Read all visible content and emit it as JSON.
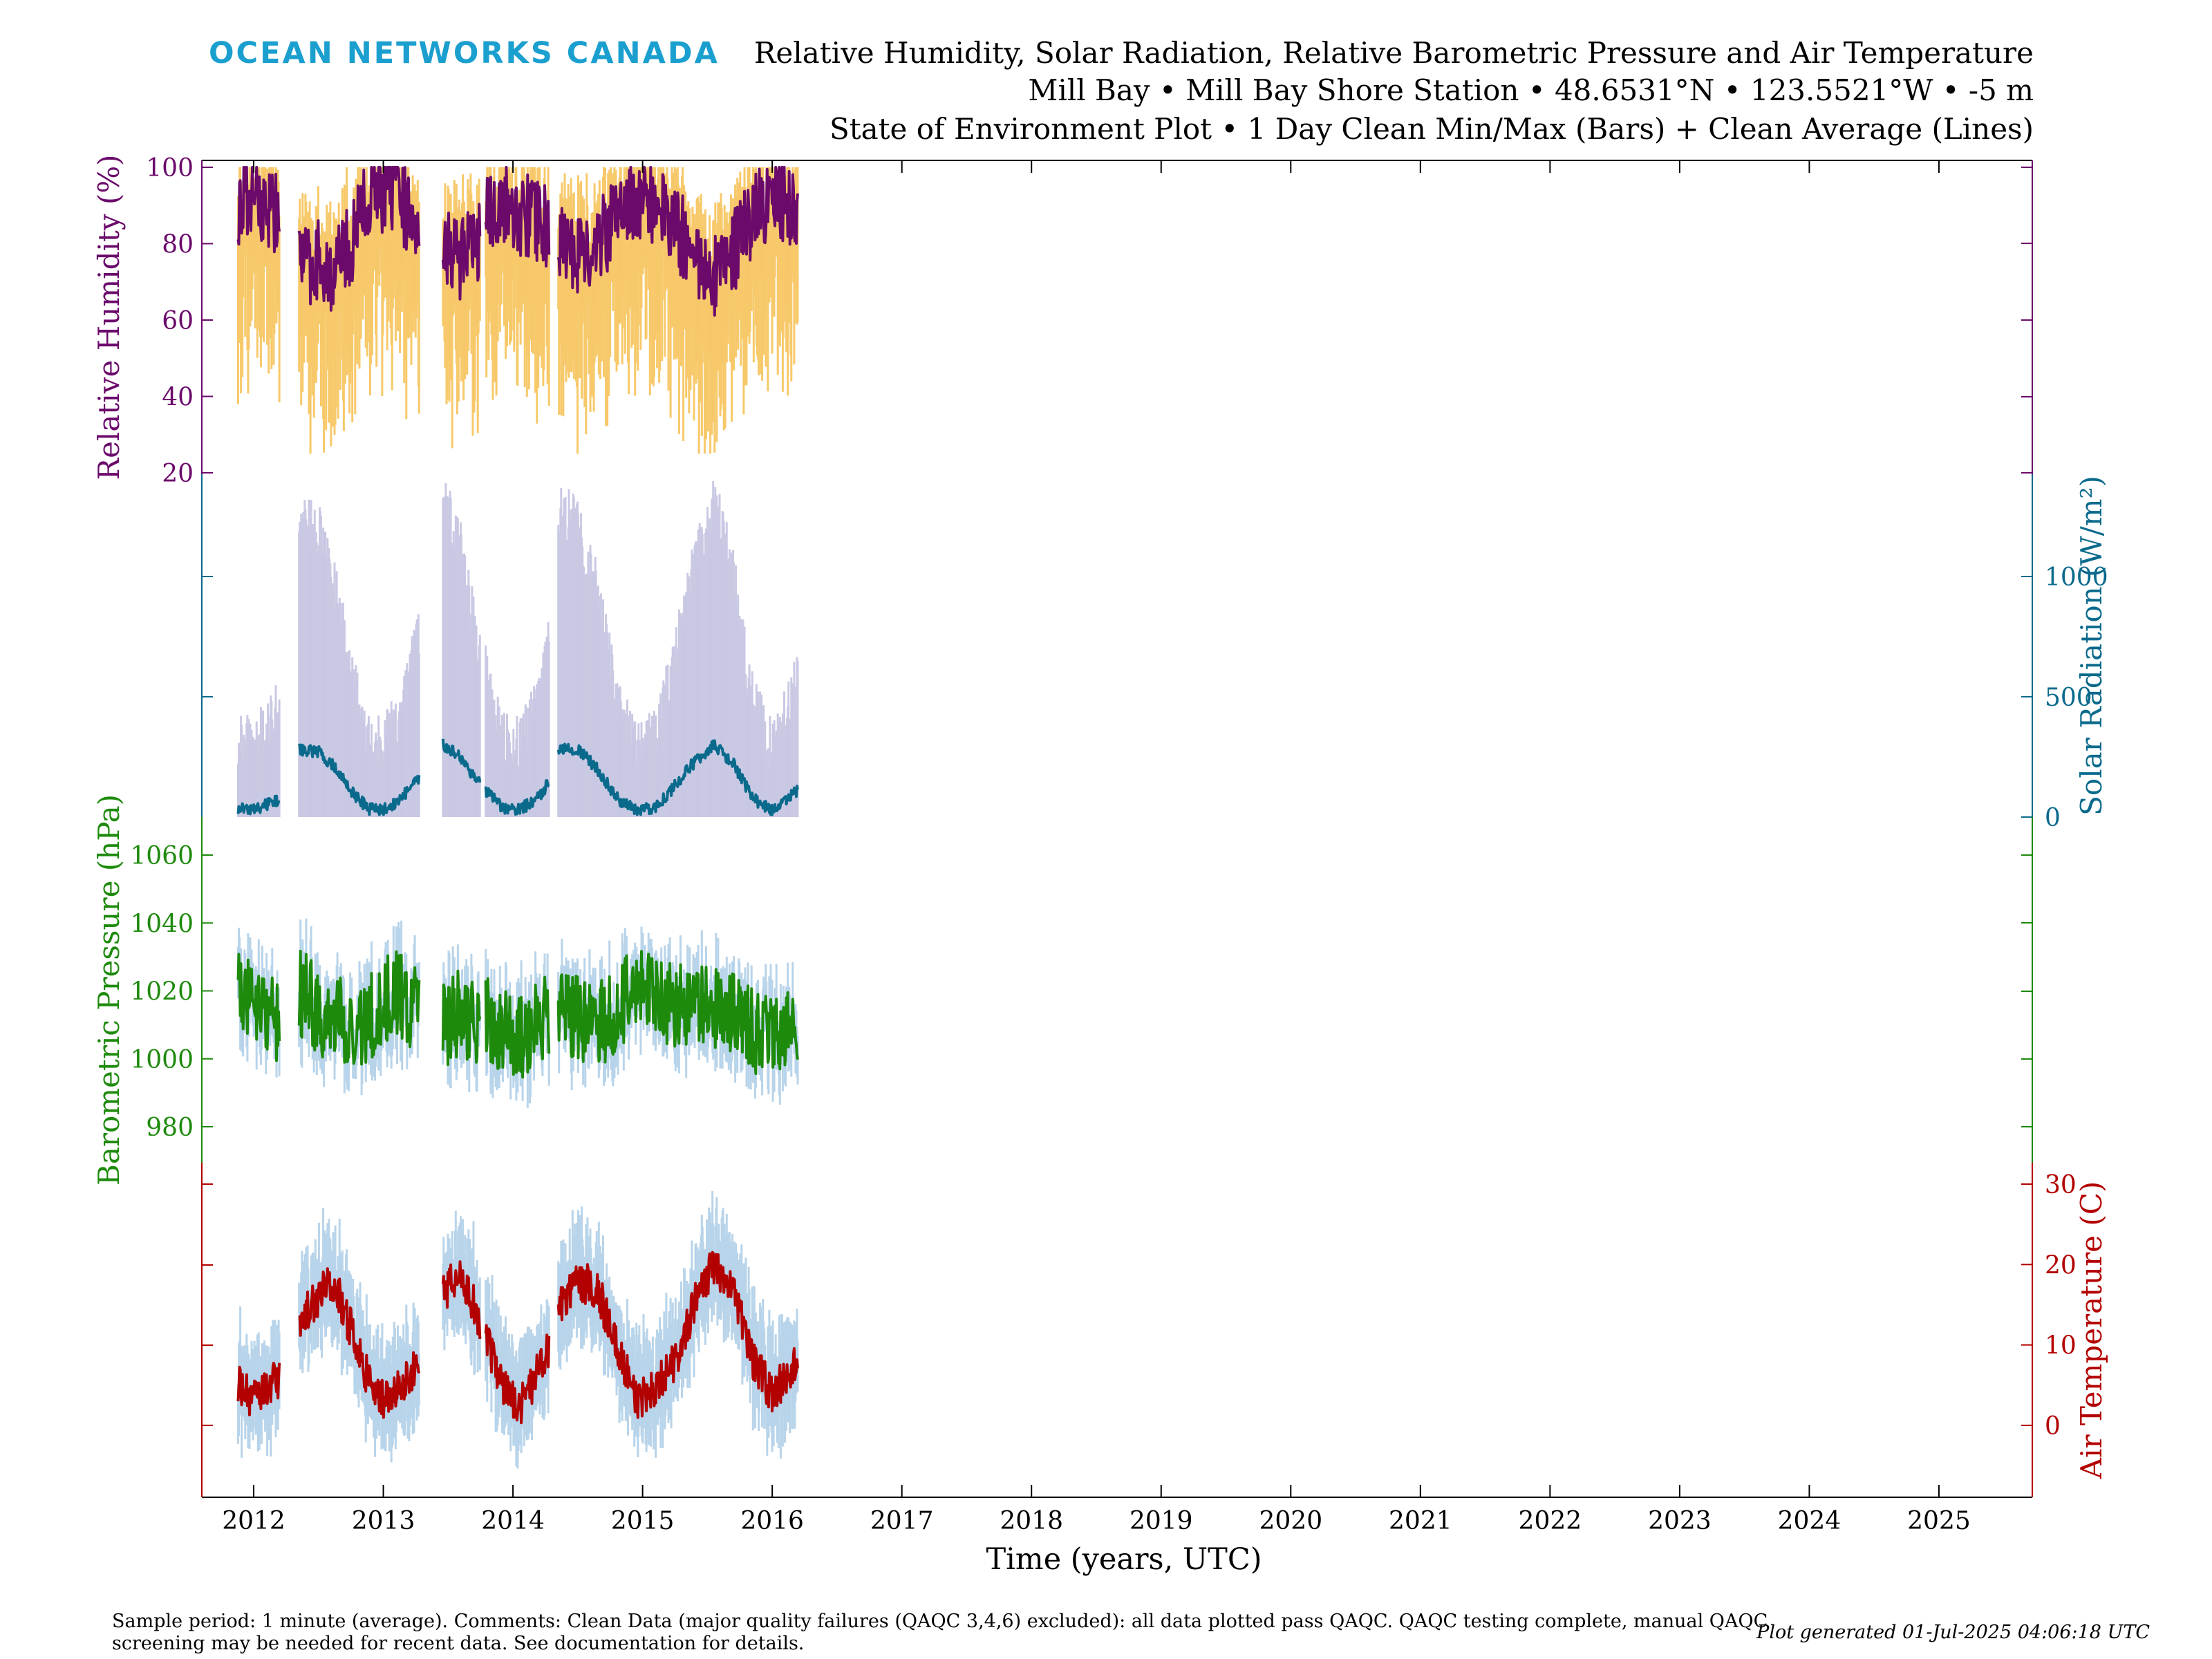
{
  "header": {
    "logo": "OCEAN NETWORKS CANADA",
    "title_line1": "Relative Humidity, Solar Radiation, Relative Barometric Pressure and Air Temperature",
    "title_line2": "Mill Bay • Mill Bay Shore Station • 48.6531°N • 123.5521°W • -5 m",
    "title_line3": "State of Environment Plot • 1 Day Clean Min/Max (Bars) + Clean Average (Lines)"
  },
  "footer": {
    "note": "Sample period: 1 minute (average). Comments: Clean Data (major quality failures (QAQC 3,4,6) excluded): all data plotted pass QAQC. QAQC testing complete, manual QAQC screening may be needed for recent data. See documentation for details.",
    "generated": "Plot generated 01-Jul-2025 04:06:18 UTC"
  },
  "colors": {
    "humidity": "#6b0a6b",
    "humidity_range": "#f7c96a",
    "solar": "#0a6a8c",
    "solar_range": "#c9c9e4",
    "pressure": "#1d8a0c",
    "pressure_range": "#b8d4ea",
    "temperature": "#b30000",
    "temperature_range": "#b8d4ea"
  },
  "chart_data": {
    "type": "line",
    "xlabel": "Time (years, UTC)",
    "xlim": [
      2011.6,
      2025.72
    ],
    "x_ticks": [
      "2012",
      "2013",
      "2014",
      "2015",
      "2016",
      "2017",
      "2018",
      "2019",
      "2020",
      "2021",
      "2022",
      "2023",
      "2024",
      "2025"
    ],
    "data_segments": [
      [
        2011.88,
        2012.2
      ],
      [
        2012.35,
        2013.28
      ],
      [
        2013.46,
        2013.75
      ],
      [
        2013.79,
        2014.28
      ],
      [
        2014.35,
        2016.2
      ]
    ],
    "series": [
      {
        "name": "Relative Humidity",
        "ylabel": "Relative Humidity (%)",
        "axis": "left",
        "ylim": [
          10,
          100
        ],
        "ticks": [
          "100",
          "80",
          "60",
          "40",
          "20"
        ],
        "monthly_avg": [
          [
            2011.88,
            90
          ],
          [
            2012.0,
            92
          ],
          [
            2012.2,
            88
          ],
          [
            2012.35,
            74
          ],
          [
            2012.5,
            76
          ],
          [
            2012.62,
            72
          ],
          [
            2012.75,
            80
          ],
          [
            2012.88,
            92
          ],
          [
            2013.0,
            94
          ],
          [
            2013.1,
            92
          ],
          [
            2013.28,
            86
          ],
          [
            2013.46,
            82
          ],
          [
            2013.58,
            76
          ],
          [
            2013.7,
            79
          ],
          [
            2013.79,
            86
          ],
          [
            2013.92,
            91
          ],
          [
            2014.05,
            88
          ],
          [
            2014.2,
            86
          ],
          [
            2014.28,
            84
          ],
          [
            2014.35,
            80
          ],
          [
            2014.5,
            77
          ],
          [
            2014.65,
            80
          ],
          [
            2014.8,
            87
          ],
          [
            2014.95,
            93
          ],
          [
            2015.1,
            90
          ],
          [
            2015.25,
            84
          ],
          [
            2015.4,
            78
          ],
          [
            2015.55,
            72
          ],
          [
            2015.7,
            78
          ],
          [
            2015.85,
            87
          ],
          [
            2016.0,
            93
          ],
          [
            2016.2,
            89
          ]
        ],
        "range_min": 25,
        "range_max": 100
      },
      {
        "name": "Solar Radiation",
        "ylabel": "Solar Radiation (W/m²)",
        "axis": "right",
        "ylim": [
          0,
          1500
        ],
        "ticks": [
          "1000",
          "500",
          "0"
        ],
        "monthly_avg": [
          [
            2011.88,
            35
          ],
          [
            2012.0,
            30
          ],
          [
            2012.2,
            75
          ],
          [
            2012.35,
            280
          ],
          [
            2012.5,
            270
          ],
          [
            2012.62,
            210
          ],
          [
            2012.75,
            110
          ],
          [
            2012.88,
            35
          ],
          [
            2013.0,
            30
          ],
          [
            2013.1,
            60
          ],
          [
            2013.28,
            160
          ],
          [
            2013.46,
            300
          ],
          [
            2013.58,
            260
          ],
          [
            2013.7,
            170
          ],
          [
            2013.79,
            110
          ],
          [
            2013.92,
            35
          ],
          [
            2014.05,
            30
          ],
          [
            2014.2,
            80
          ],
          [
            2014.28,
            150
          ],
          [
            2014.35,
            290
          ],
          [
            2014.5,
            280
          ],
          [
            2014.65,
            200
          ],
          [
            2014.8,
            80
          ],
          [
            2014.95,
            25
          ],
          [
            2015.1,
            40
          ],
          [
            2015.25,
            130
          ],
          [
            2015.4,
            230
          ],
          [
            2015.55,
            300
          ],
          [
            2015.7,
            220
          ],
          [
            2015.85,
            80
          ],
          [
            2016.0,
            25
          ],
          [
            2016.2,
            110
          ]
        ],
        "range_max_peak": 1320
      },
      {
        "name": "Barometric Pressure",
        "ylabel": "Barometric Pressure (hPa)",
        "axis": "left",
        "ylim": [
          970,
          1070
        ],
        "ticks": [
          "1060",
          "1040",
          "1020",
          "1000",
          "980"
        ],
        "monthly_avg": [
          [
            2011.88,
            1025
          ],
          [
            2012.0,
            1015
          ],
          [
            2012.2,
            1010
          ],
          [
            2012.35,
            1020
          ],
          [
            2012.5,
            1014
          ],
          [
            2012.62,
            1012
          ],
          [
            2012.75,
            1010
          ],
          [
            2012.88,
            1012
          ],
          [
            2013.0,
            1016
          ],
          [
            2013.1,
            1020
          ],
          [
            2013.28,
            1014
          ],
          [
            2013.46,
            1010
          ],
          [
            2013.58,
            1014
          ],
          [
            2013.7,
            1010
          ],
          [
            2013.79,
            1012
          ],
          [
            2013.92,
            1008
          ],
          [
            2014.05,
            1005
          ],
          [
            2014.2,
            1010
          ],
          [
            2014.28,
            1012
          ],
          [
            2014.35,
            1014
          ],
          [
            2014.5,
            1012
          ],
          [
            2014.65,
            1010
          ],
          [
            2014.8,
            1012
          ],
          [
            2014.95,
            1024
          ],
          [
            2015.1,
            1018
          ],
          [
            2015.25,
            1016
          ],
          [
            2015.4,
            1015
          ],
          [
            2015.55,
            1014
          ],
          [
            2015.7,
            1012
          ],
          [
            2015.85,
            1008
          ],
          [
            2016.0,
            1005
          ],
          [
            2016.2,
            1012
          ]
        ]
      },
      {
        "name": "Air Temperature",
        "ylabel": "Air Temperature (C)",
        "axis": "right",
        "ylim": [
          -8.5,
          33
        ],
        "ticks": [
          "30",
          "20",
          "10",
          "0"
        ],
        "monthly_avg": [
          [
            2011.88,
            5
          ],
          [
            2012.0,
            3
          ],
          [
            2012.2,
            6
          ],
          [
            2012.35,
            13
          ],
          [
            2012.5,
            16
          ],
          [
            2012.62,
            18
          ],
          [
            2012.75,
            12
          ],
          [
            2012.88,
            6
          ],
          [
            2013.0,
            3
          ],
          [
            2013.1,
            4
          ],
          [
            2013.28,
            8
          ],
          [
            2013.46,
            16
          ],
          [
            2013.58,
            19
          ],
          [
            2013.7,
            15
          ],
          [
            2013.79,
            11
          ],
          [
            2013.92,
            5
          ],
          [
            2014.05,
            2
          ],
          [
            2014.2,
            7
          ],
          [
            2014.28,
            10
          ],
          [
            2014.35,
            15
          ],
          [
            2014.5,
            18
          ],
          [
            2014.65,
            17
          ],
          [
            2014.8,
            10
          ],
          [
            2014.95,
            3
          ],
          [
            2015.1,
            5
          ],
          [
            2015.25,
            8
          ],
          [
            2015.4,
            15
          ],
          [
            2015.55,
            20
          ],
          [
            2015.7,
            17
          ],
          [
            2015.85,
            8
          ],
          [
            2016.0,
            4
          ],
          [
            2016.2,
            8
          ]
        ]
      }
    ]
  }
}
